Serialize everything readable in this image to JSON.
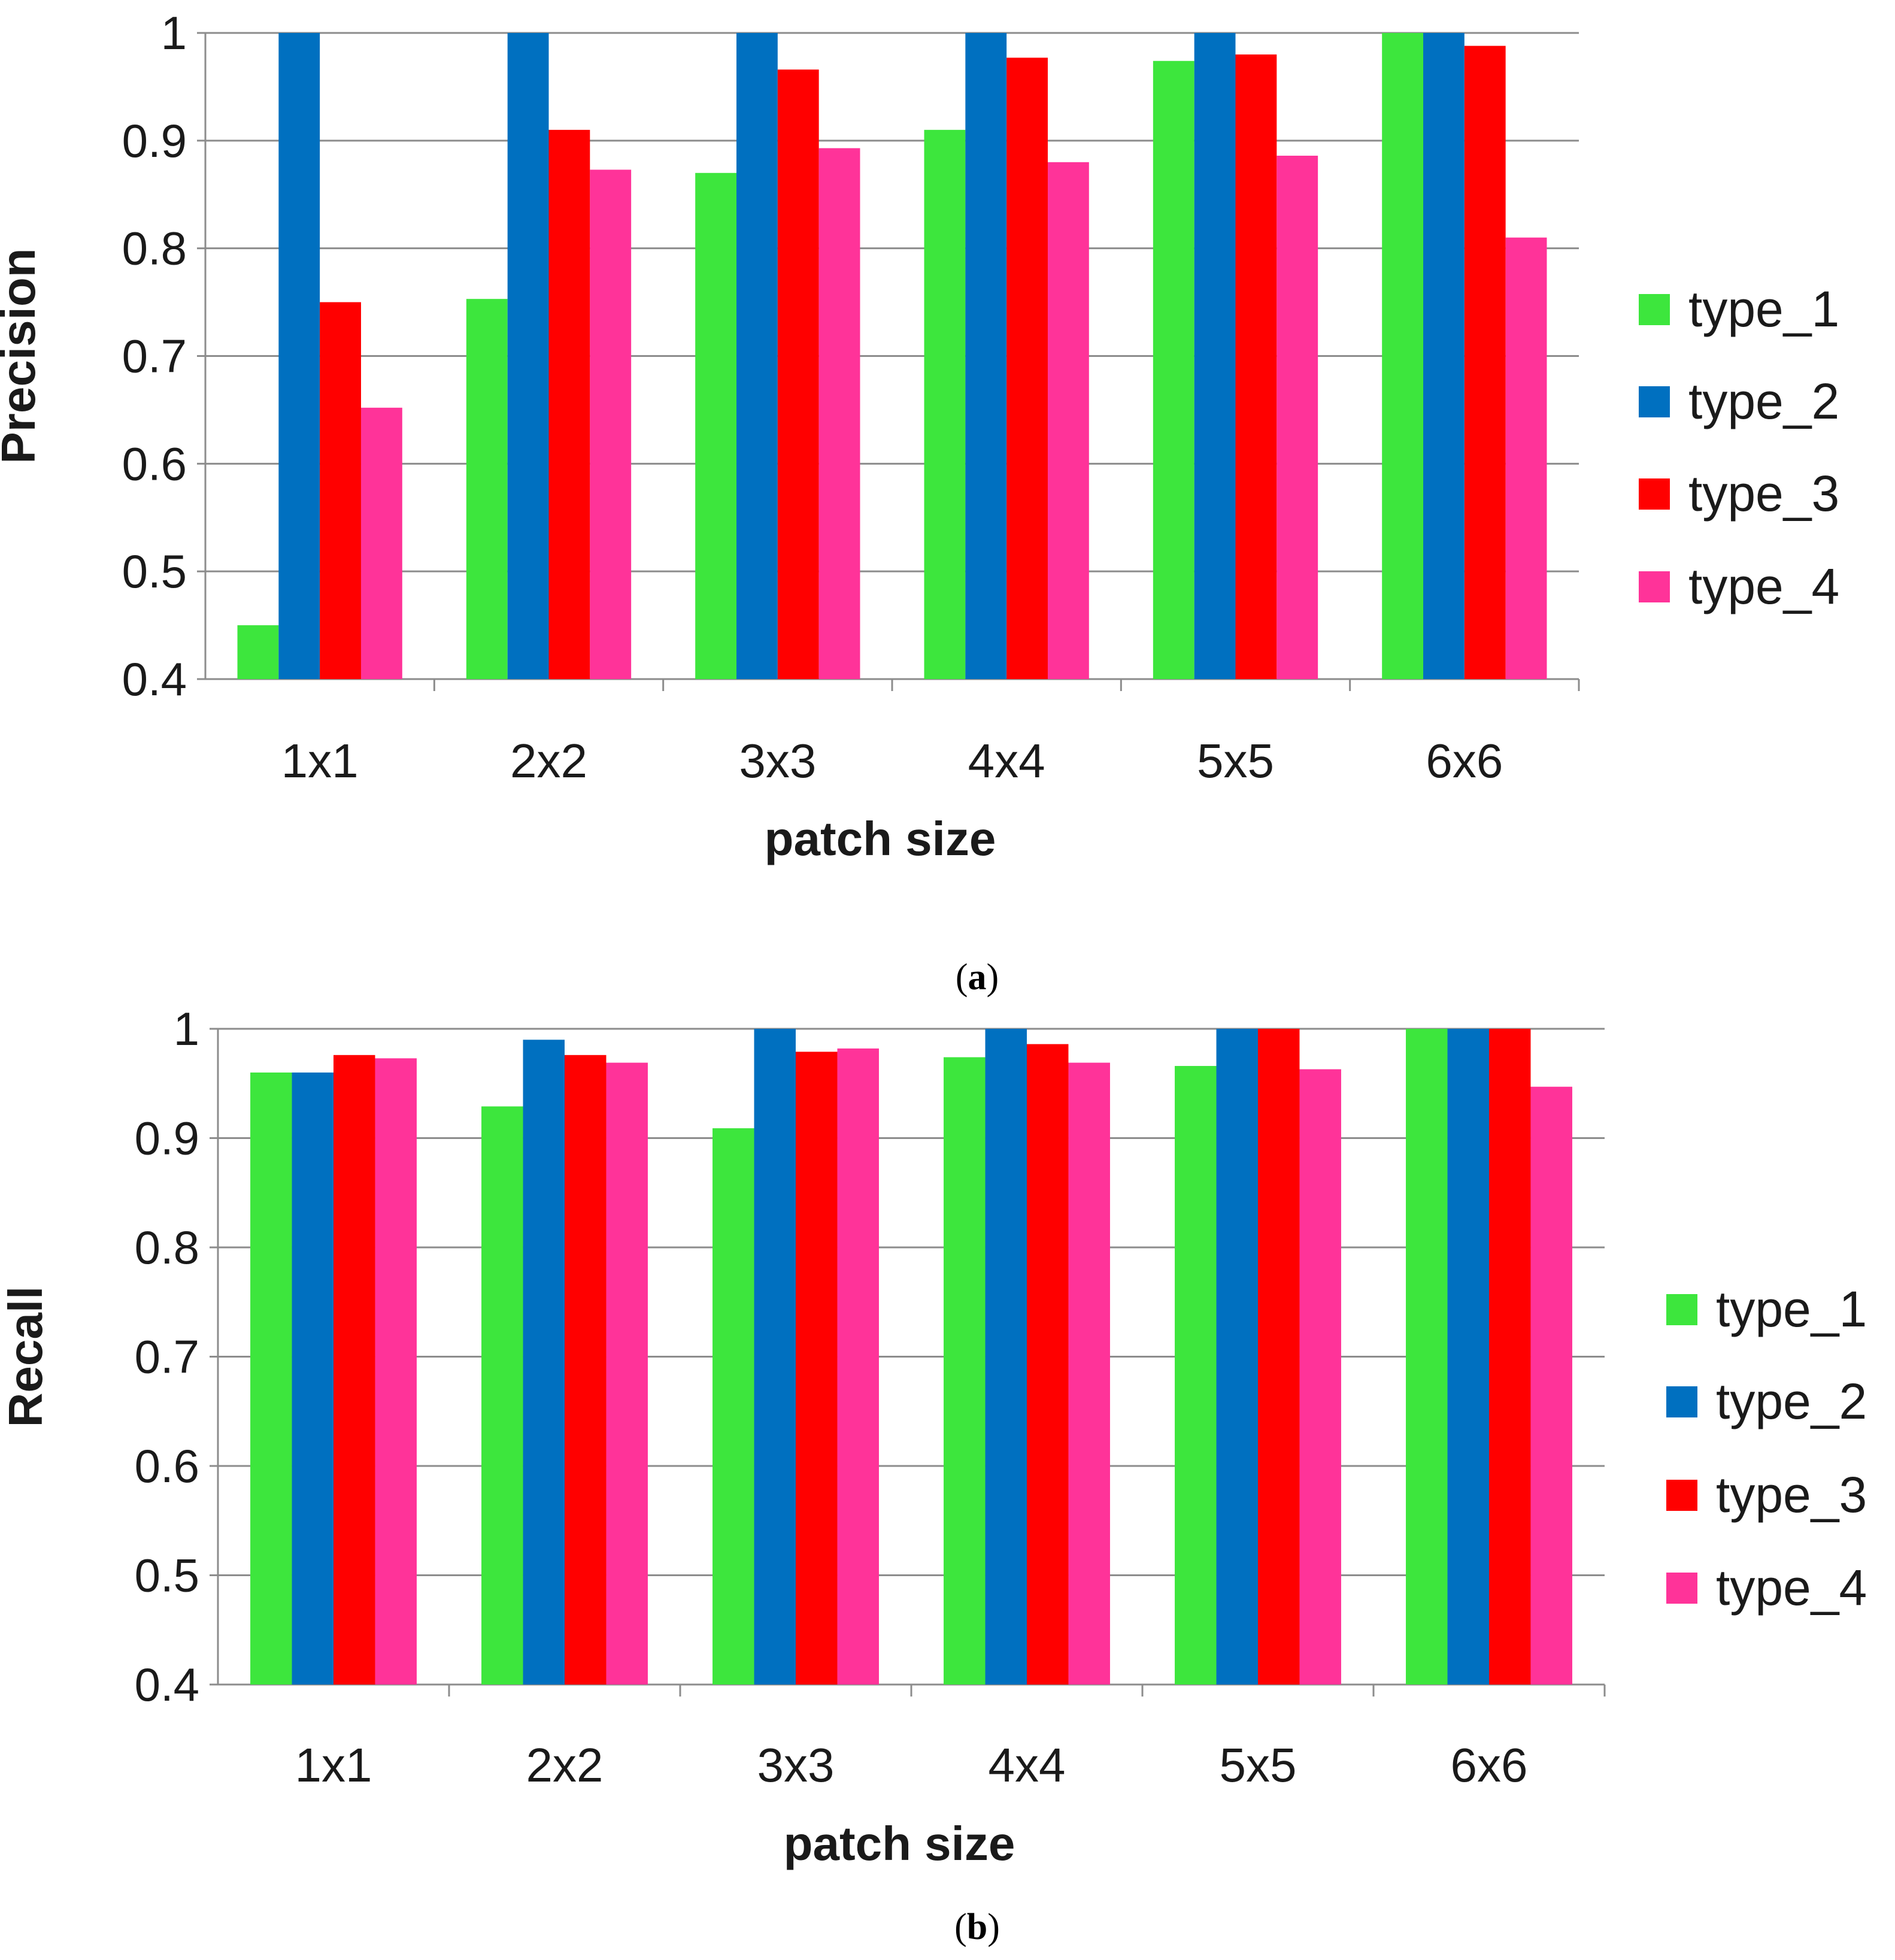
{
  "chart_data": [
    {
      "type": "bar",
      "panel_label": "a",
      "categories": [
        "1x1",
        "2x2",
        "3x3",
        "4x4",
        "5x5",
        "6x6"
      ],
      "series": [
        {
          "name": "type_1",
          "color": "#3DE63D",
          "values": [
            0.45,
            0.753,
            0.87,
            0.91,
            0.974,
            1.0
          ]
        },
        {
          "name": "type_2",
          "color": "#0070C0",
          "values": [
            1.0,
            1.0,
            1.0,
            1.0,
            1.0,
            1.0
          ]
        },
        {
          "name": "type_3",
          "color": "#FF0000",
          "values": [
            0.75,
            0.91,
            0.966,
            0.977,
            0.98,
            0.988
          ]
        },
        {
          "name": "type_4",
          "color": "#FF3399",
          "values": [
            0.652,
            0.873,
            0.893,
            0.88,
            0.886,
            0.81
          ]
        }
      ],
      "title": "",
      "xlabel": "patch size",
      "ylabel": "Precision",
      "ylim": [
        0.4,
        1
      ],
      "yticks": [
        "0.4",
        "0.5",
        "0.6",
        "0.7",
        "0.8",
        "0.9",
        "1"
      ],
      "grid": true,
      "legend": "right"
    },
    {
      "type": "bar",
      "panel_label": "b",
      "categories": [
        "1x1",
        "2x2",
        "3x3",
        "4x4",
        "5x5",
        "6x6"
      ],
      "series": [
        {
          "name": "type_1",
          "color": "#3DE63D",
          "values": [
            0.96,
            0.929,
            0.909,
            0.974,
            0.966,
            1.0
          ]
        },
        {
          "name": "type_2",
          "color": "#0070C0",
          "values": [
            0.96,
            0.99,
            1.0,
            1.0,
            1.0,
            1.0
          ]
        },
        {
          "name": "type_3",
          "color": "#FF0000",
          "values": [
            0.976,
            0.976,
            0.979,
            0.986,
            1.0,
            1.0
          ]
        },
        {
          "name": "type_4",
          "color": "#FF3399",
          "values": [
            0.973,
            0.969,
            0.982,
            0.969,
            0.963,
            0.947
          ]
        }
      ],
      "title": "",
      "xlabel": "patch size",
      "ylabel": "Recall",
      "ylim": [
        0.4,
        1
      ],
      "yticks": [
        "0.4",
        "0.5",
        "0.6",
        "0.7",
        "0.8",
        "0.9",
        "1"
      ],
      "grid": true,
      "legend": "right"
    }
  ]
}
